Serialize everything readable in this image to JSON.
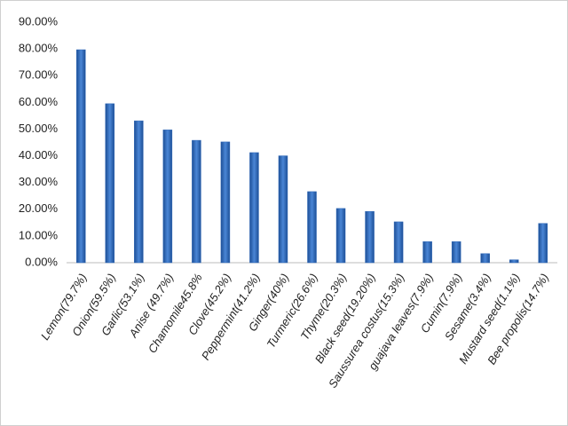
{
  "chart_data": {
    "type": "bar",
    "categories": [
      "Lemon(79.7%)",
      "Onion(59.5%)",
      "Garlic(53.1%)",
      "Anise (49.7%)",
      "Chamomile45.8%",
      "Clove(45.2%)",
      "Peppermint(41.2%)",
      "Ginger(40%)",
      "Turmeric(26.6%)",
      "Thyme(20.3%)",
      "Black seed(19.20%)",
      "Saussurea costus(15.3%)",
      "guajava leaves(7.9%)",
      "Cumin(7.9%)",
      "Sesame(3.4%)",
      "Mustard seed(1.1%)",
      "Bee propolis(14.7%)"
    ],
    "values": [
      79.7,
      59.5,
      53.1,
      49.7,
      45.8,
      45.2,
      41.2,
      40,
      26.6,
      20.3,
      19.2,
      15.3,
      7.9,
      7.9,
      3.4,
      1.1,
      14.7
    ],
    "color": "#2f68b8",
    "ylim": [
      0,
      90
    ],
    "yticks": [
      {
        "value": 0,
        "label": "0.00%"
      },
      {
        "value": 10,
        "label": "10.00%"
      },
      {
        "value": 20,
        "label": "20.00%"
      },
      {
        "value": 30,
        "label": "30.00%"
      },
      {
        "value": 40,
        "label": "40.00%"
      },
      {
        "value": 50,
        "label": "50.00%"
      },
      {
        "value": 60,
        "label": "60.00%"
      },
      {
        "value": 70,
        "label": "70.00%"
      },
      {
        "value": 80,
        "label": "80.00%"
      },
      {
        "value": 90,
        "label": "90.00%"
      }
    ],
    "grid": false
  }
}
